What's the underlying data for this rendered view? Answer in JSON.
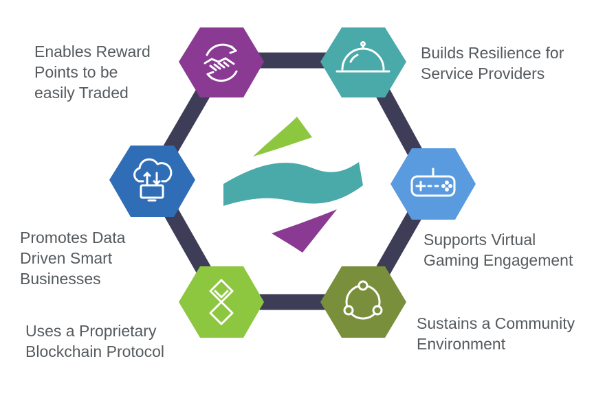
{
  "benefits": [
    {
      "id": "reward-points",
      "icon": "handshake-exchange-icon",
      "color": "#8a3a92",
      "lines": [
        "Enables Reward",
        "Points to be",
        "easily Traded"
      ]
    },
    {
      "id": "resilience",
      "icon": "service-cloche-icon",
      "color": "#4aa9a9",
      "lines": [
        "Builds Resilience for",
        "Service Providers"
      ]
    },
    {
      "id": "gaming",
      "icon": "gamepad-icon",
      "color": "#5a9bdf",
      "lines": [
        "Supports Virtual",
        "Gaming Engagement"
      ]
    },
    {
      "id": "community",
      "icon": "community-network-icon",
      "color": "#7a8f3b",
      "lines": [
        "Sustains a Community",
        "Environment"
      ]
    },
    {
      "id": "blockchain",
      "icon": "blockchain-link-icon",
      "color": "#8dc63f",
      "lines": [
        "Uses a Proprietary",
        "Blockchain Protocol"
      ]
    },
    {
      "id": "data-driven",
      "icon": "cloud-sync-icon",
      "color": "#2f6db6",
      "lines": [
        "Promotes Data",
        "Driven Smart",
        "Businesses"
      ]
    }
  ],
  "colors": {
    "ring": "#3e3d57",
    "text": "#555a5e",
    "logo_green": "#8dc63f",
    "logo_teal": "#4aa9a9",
    "logo_purple": "#8a3a92"
  },
  "center_logo": "wave-s-logo-icon"
}
